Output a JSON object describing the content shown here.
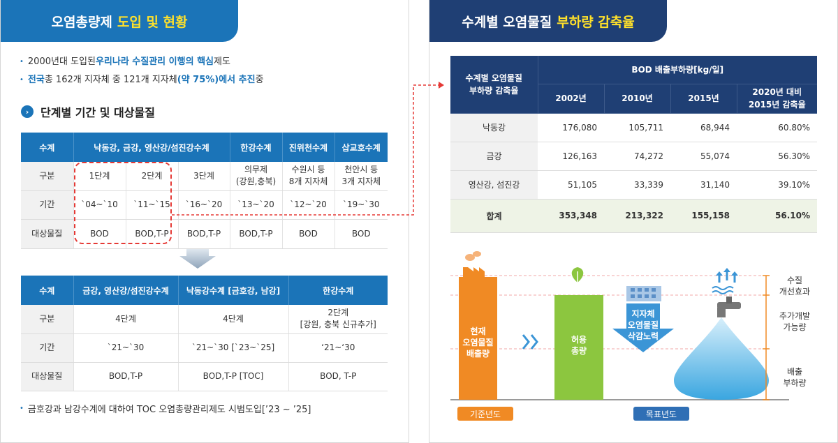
{
  "left": {
    "tab": {
      "title": "오염총량제",
      "highlight": "도입 및 현황"
    },
    "bullets": [
      {
        "pre": "2000년대 도입된 ",
        "hl": "우리나라 수질관리 이행의 핵심",
        "post": " 제도"
      },
      {
        "hl1": "전국",
        "mid1": " 총 162개 지자체 중 121개 지자체",
        "hl2": "(약 75%)에서 추진",
        "post": " 중"
      }
    ],
    "section_title": "단계별 기간 및 대상물질",
    "table1": {
      "headers": [
        "수계",
        "낙동강, 금강, 영산강/섬진강수계",
        "한강수계",
        "진위천수계",
        "삽교호수계"
      ],
      "row_labels": [
        "구분",
        "기간",
        "대상물질"
      ],
      "rows": [
        [
          "1단계",
          "2단계",
          "3단계",
          "의무제\n(강원,충북)",
          "수원시 등\n8개 지자체",
          "천안시 등\n3개 지자체"
        ],
        [
          "`04~`10",
          "`11~`15",
          "`16~`20",
          "`13~`20",
          "`12~`20",
          "`19~`30"
        ],
        [
          "BOD",
          "BOD,T-P",
          "BOD,T-P",
          "BOD,T-P",
          "BOD",
          "BOD"
        ]
      ]
    },
    "table2": {
      "headers": [
        "수계",
        "금강, 영산강/섬진강수계",
        "낙동강수계 [금호강, 남강]",
        "한강수계"
      ],
      "row_labels": [
        "구분",
        "기간",
        "대상물질"
      ],
      "rows": [
        [
          "4단계",
          "4단계",
          "2단계\n[강원, 충북 신규추가]"
        ],
        [
          "`21~`30",
          "`21~`30 [`23~`25]",
          "‘21~‘30"
        ],
        [
          "BOD,T-P",
          "BOD,T-P [TOC]",
          "BOD, T-P"
        ]
      ]
    },
    "footnote": "금호강과 남강수계에 대하여 TOC 오염총량관리제도 시범도입[’23 ~ ’25]"
  },
  "right": {
    "tab": {
      "title": "수계별 오염물질",
      "highlight": "부하량 감축율"
    },
    "table": {
      "corner": "수계별 오염물질\n부하량 감축율",
      "group_header": "BOD 배출부하량[kg/일]",
      "years": [
        "2002년",
        "2010년",
        "2015년",
        "2020년 대비\n2015년 감축율"
      ],
      "rows": [
        {
          "name": "낙동강",
          "values": [
            "176,080",
            "105,711",
            "68,944",
            "60.80%"
          ]
        },
        {
          "name": "금강",
          "values": [
            "126,163",
            "74,272",
            "55,074",
            "56.30%"
          ]
        },
        {
          "name": "영산강, 섬진강",
          "values": [
            "51,105",
            "33,339",
            "31,140",
            "39.10%"
          ]
        }
      ],
      "total": {
        "name": "합계",
        "values": [
          "353,348",
          "213,322",
          "155,158",
          "56.10%"
        ]
      }
    },
    "illustration": {
      "current_emission": "현재\n오염물질\n배출량",
      "allowable": "허용\n총량",
      "reduction": "지자체\n오염물질\n삭감노력",
      "legend": [
        "수질\n개선효과",
        "추가개발\n가능량",
        "배출\n부하량"
      ],
      "base_year": "기준년도",
      "target_year": "목표년도"
    }
  }
}
